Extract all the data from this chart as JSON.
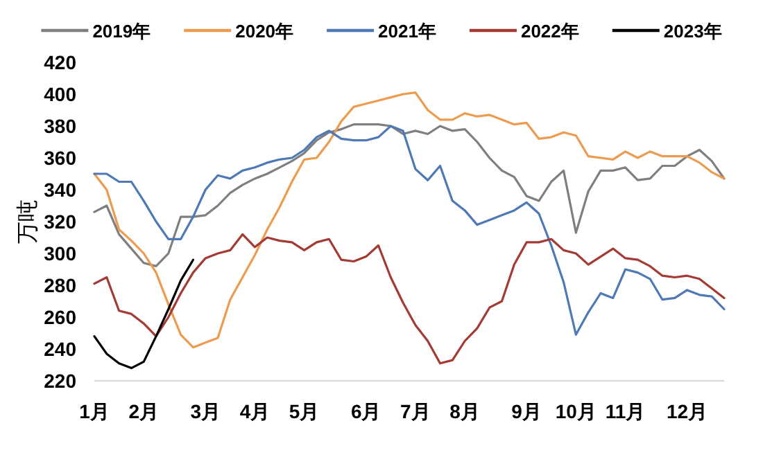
{
  "chart_data": {
    "type": "line",
    "ylabel": "万吨",
    "categories": [
      "1月",
      null,
      null,
      null,
      "2月",
      null,
      null,
      null,
      null,
      "3月",
      null,
      null,
      null,
      "4月",
      null,
      null,
      null,
      "5月",
      null,
      null,
      null,
      null,
      "6月",
      null,
      null,
      null,
      "7月",
      null,
      null,
      null,
      "8月",
      null,
      null,
      null,
      null,
      "9月",
      null,
      null,
      null,
      "10月",
      null,
      null,
      null,
      "11月",
      null,
      null,
      null,
      null,
      "12月",
      null,
      null,
      null
    ],
    "ylim": [
      220,
      420
    ],
    "yticks": [
      220,
      240,
      260,
      280,
      300,
      320,
      340,
      360,
      380,
      400,
      420
    ],
    "legend": "top",
    "marker": "none",
    "line_style": "solid",
    "series": [
      {
        "name": "2019年",
        "color": "#7f7f7f",
        "values": [
          326,
          330,
          312,
          303,
          294,
          292,
          300,
          323,
          323,
          324,
          330,
          338,
          343,
          347,
          350,
          354,
          358,
          363,
          371,
          376,
          378,
          381,
          381,
          381,
          380,
          375,
          377,
          375,
          380,
          377,
          378,
          370,
          360,
          352,
          348,
          336,
          333,
          345,
          352,
          313,
          339,
          352,
          352,
          354,
          346,
          347,
          355,
          355,
          361,
          365,
          358,
          347
        ]
      },
      {
        "name": "2020年",
        "color": "#ed9b4f",
        "values": [
          350,
          340,
          315,
          308,
          300,
          288,
          268,
          249,
          241,
          244,
          247,
          271,
          285,
          299,
          315,
          329,
          345,
          359,
          360,
          370,
          383,
          392,
          394,
          396,
          398,
          400,
          401,
          390,
          384,
          384,
          388,
          386,
          387,
          384,
          381,
          382,
          372,
          373,
          376,
          374,
          361,
          360,
          359,
          364,
          360,
          364,
          361,
          361,
          361,
          357,
          351,
          347
        ]
      },
      {
        "name": "2021年",
        "color": "#4e79b5",
        "values": [
          350,
          350,
          345,
          345,
          333,
          320,
          309,
          309,
          323,
          340,
          349,
          347,
          352,
          354,
          357,
          359,
          360,
          365,
          373,
          377,
          372,
          371,
          371,
          373,
          380,
          377,
          353,
          346,
          355,
          333,
          327,
          318,
          321,
          324,
          327,
          332,
          325,
          305,
          282,
          249,
          263,
          275,
          272,
          290,
          288,
          284,
          271,
          272,
          277,
          274,
          273,
          265
        ]
      },
      {
        "name": "2022年",
        "color": "#a33a33",
        "values": [
          281,
          285,
          264,
          262,
          256,
          248,
          260,
          275,
          288,
          297,
          300,
          302,
          312,
          304,
          310,
          308,
          307,
          302,
          307,
          309,
          296,
          295,
          298,
          305,
          285,
          269,
          255,
          245,
          231,
          233,
          245,
          253,
          266,
          270,
          293,
          307,
          307,
          309,
          302,
          300,
          293,
          298,
          303,
          297,
          296,
          292,
          286,
          285,
          286,
          284,
          278,
          272
        ]
      },
      {
        "name": "2023年",
        "color": "#000000",
        "values": [
          248,
          237,
          231,
          228,
          232,
          248,
          265,
          283,
          296,
          null,
          null,
          null,
          null,
          null,
          null,
          null,
          null,
          null,
          null,
          null,
          null,
          null,
          null,
          null,
          null,
          null,
          null,
          null,
          null,
          null,
          null,
          null,
          null,
          null,
          null,
          null,
          null,
          null,
          null,
          null,
          null,
          null,
          null,
          null,
          null,
          null,
          null,
          null,
          null,
          null,
          null,
          null
        ]
      }
    ]
  }
}
